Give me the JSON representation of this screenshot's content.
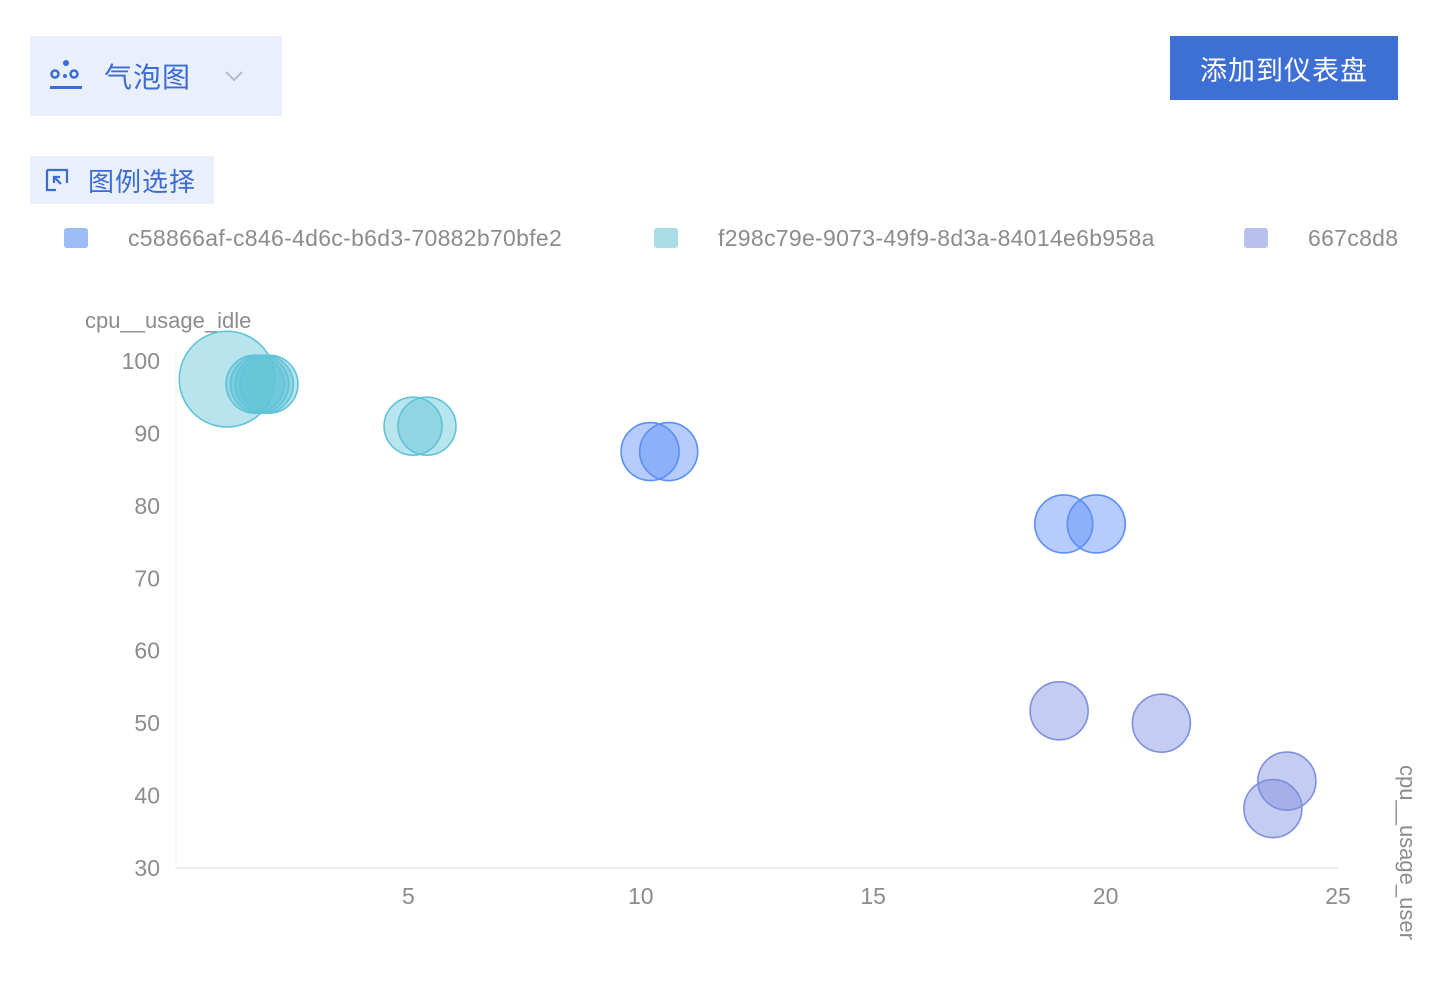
{
  "toolbar": {
    "chart_type_label": "气泡图",
    "chart_type_icon": "bubble-chart-icon",
    "dropdown_icon": "chevron-down-icon",
    "add_button_label": "添加到仪表盘"
  },
  "legend_select": {
    "label": "图例选择",
    "icon": "legend-select-icon"
  },
  "colors": {
    "accent": "#3d6fd4",
    "series_1": "#5b8ff9",
    "series_2": "#61c3d8",
    "series_3": "#7e8fe0"
  },
  "chart_data": {
    "type": "scatter",
    "variant": "bubble",
    "xlabel": "cpu__usage_user",
    "ylabel": "cpu__usage_idle",
    "xlim": [
      0,
      25
    ],
    "ylim": [
      30,
      100
    ],
    "x_ticks": [
      "5",
      "10",
      "15",
      "20",
      "25"
    ],
    "y_ticks": [
      "30",
      "40",
      "50",
      "60",
      "70",
      "80",
      "90",
      "100"
    ],
    "legend_position": "top",
    "series": [
      {
        "name": "c58866af-c846-4d6c-b6d3-70882b70bfe2",
        "color": "#5b8ff9",
        "points": [
          {
            "x": 10.2,
            "y": 87.5,
            "size": 1.0
          },
          {
            "x": 10.6,
            "y": 87.5,
            "size": 1.0
          },
          {
            "x": 19.1,
            "y": 77.5,
            "size": 1.0
          },
          {
            "x": 19.8,
            "y": 77.5,
            "size": 1.0
          }
        ]
      },
      {
        "name": "f298c79e-9073-49f9-8d3a-84014e6b958a",
        "color": "#61c3d8",
        "points": [
          {
            "x": 1.1,
            "y": 97.5,
            "size": 1.65
          },
          {
            "x": 1.7,
            "y": 96.8,
            "size": 1.0
          },
          {
            "x": 1.8,
            "y": 96.8,
            "size": 1.0
          },
          {
            "x": 1.9,
            "y": 96.8,
            "size": 1.0
          },
          {
            "x": 2.0,
            "y": 96.8,
            "size": 1.0
          },
          {
            "x": 5.1,
            "y": 91.0,
            "size": 1.0
          },
          {
            "x": 5.4,
            "y": 91.0,
            "size": 1.0
          }
        ]
      },
      {
        "name": "667c8d8",
        "color": "#7e8fe0",
        "points": [
          {
            "x": 19.0,
            "y": 51.7,
            "size": 1.0
          },
          {
            "x": 21.2,
            "y": 50.0,
            "size": 1.0
          },
          {
            "x": 23.9,
            "y": 42.0,
            "size": 1.0
          },
          {
            "x": 23.6,
            "y": 38.2,
            "size": 1.0
          }
        ]
      }
    ]
  }
}
